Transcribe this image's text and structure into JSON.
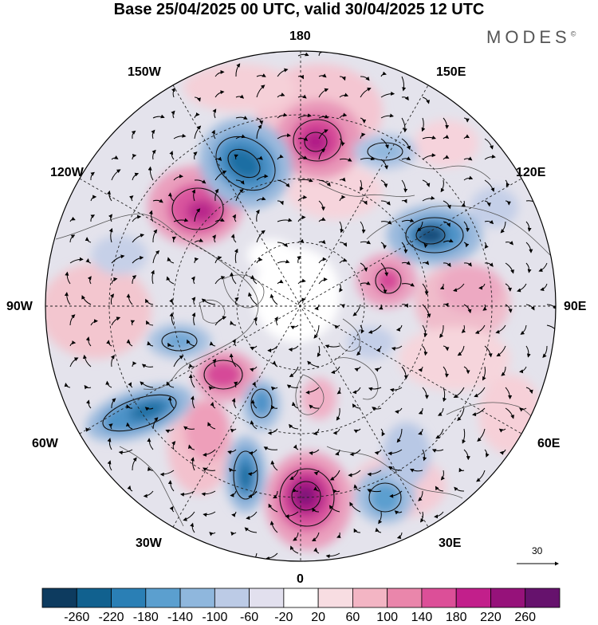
{
  "title": "Base 25/04/2025 00 UTC, valid 30/04/2025 12 UTC",
  "brand": "MODES",
  "brand_mark": "©",
  "longitudes": {
    "n180": "180",
    "n150w": "150W",
    "n150e": "150E",
    "n120w": "120W",
    "n120e": "120E",
    "n90w": "90W",
    "n90e": "90E",
    "n60w": "60W",
    "n60e": "60E",
    "n30w": "30W",
    "n30e": "30E",
    "n0": "0"
  },
  "reference_vector_label": "30",
  "colorbar": {
    "labels": [
      "-260",
      "-220",
      "-180",
      "-140",
      "-100",
      "-60",
      "-20",
      "20",
      "60",
      "100",
      "140",
      "180",
      "220",
      "260"
    ],
    "colors": [
      "#0d3b5f",
      "#11618f",
      "#2a7fb5",
      "#5b9fcf",
      "#8fb7dd",
      "#bccbe6",
      "#e2e0ee",
      "#ffffff",
      "#f8dde2",
      "#f3b5c4",
      "#ea86ab",
      "#dc4f98",
      "#c21f8b",
      "#96127a",
      "#66126d"
    ]
  }
}
